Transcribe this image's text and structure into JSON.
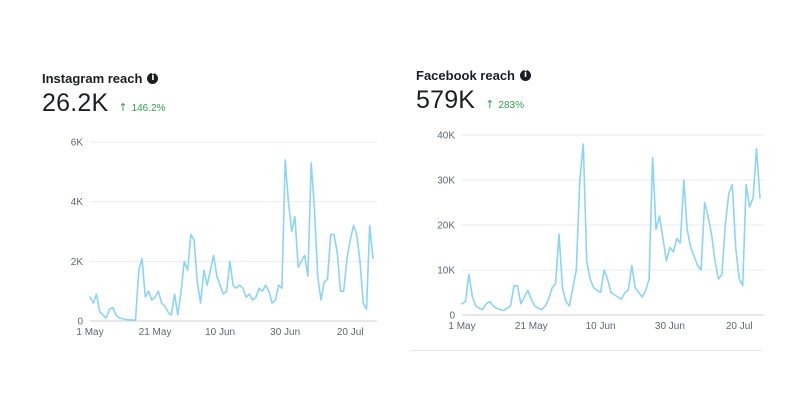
{
  "instagram": {
    "title": "Instagram reach",
    "metric": "26.2K",
    "delta": "146.2%",
    "delta_color": "#31a24c",
    "info_icon": "info-icon",
    "delta_icon": "arrow-up-icon"
  },
  "facebook": {
    "title": "Facebook reach",
    "metric": "579K",
    "delta": "283%",
    "delta_color": "#31a24c",
    "info_icon": "info-icon",
    "delta_icon": "arrow-up-icon"
  },
  "line_color": "#8bd4f7",
  "chart_data": [
    {
      "type": "line",
      "title": "Instagram reach",
      "xlabel": "",
      "ylabel": "",
      "ylim": [
        0,
        6000
      ],
      "yticks": [
        0,
        2000,
        4000,
        6000
      ],
      "ytick_labels": [
        "0",
        "2K",
        "4K",
        "6K"
      ],
      "xticks": [
        0,
        20,
        40,
        60,
        80
      ],
      "xtick_labels": [
        "1 May",
        "21 May",
        "10 Jun",
        "30 Jun",
        "20 Jul"
      ],
      "x_start": "2024-05-01",
      "grid": true,
      "legend": "none",
      "series": [
        {
          "values": [
            800,
            600,
            900,
            300,
            200,
            100,
            400,
            450,
            200,
            100,
            80,
            50,
            40,
            30,
            20,
            1700,
            2100,
            800,
            1000,
            700,
            800,
            1000,
            600,
            500,
            300,
            200,
            900,
            200,
            1000,
            2000,
            1700,
            2900,
            2700,
            1300,
            600,
            1700,
            1200,
            1700,
            2200,
            1500,
            1200,
            900,
            1000,
            2000,
            1200,
            1100,
            1200,
            1100,
            800,
            900,
            700,
            800,
            1100,
            1000,
            1200,
            1000,
            600,
            700,
            1200,
            1100,
            5400,
            4000,
            3000,
            3500,
            1800,
            2000,
            2200,
            1500,
            5300,
            3800,
            1500,
            700,
            1300,
            1400,
            2900,
            2900,
            2300,
            1000,
            1000,
            2100,
            2700,
            3200,
            2900,
            2000,
            600,
            400,
            3200,
            2100
          ]
        }
      ]
    },
    {
      "type": "line",
      "title": "Facebook reach",
      "xlabel": "",
      "ylabel": "",
      "ylim": [
        0,
        40000
      ],
      "yticks": [
        0,
        10000,
        20000,
        30000,
        40000
      ],
      "ytick_labels": [
        "0",
        "10K",
        "20K",
        "30K",
        "40K"
      ],
      "xticks": [
        0,
        20,
        40,
        60,
        80
      ],
      "xtick_labels": [
        "1 May",
        "21 May",
        "10 Jun",
        "30 Jun",
        "20 Jul"
      ],
      "x_start": "2024-05-01",
      "grid": true,
      "legend": "none",
      "series": [
        {
          "values": [
            2500,
            3000,
            9000,
            4000,
            2000,
            1500,
            1200,
            2500,
            3000,
            2000,
            1500,
            1200,
            1000,
            1500,
            2000,
            6500,
            6500,
            2500,
            4000,
            5500,
            3500,
            2000,
            1500,
            1200,
            2000,
            3500,
            6000,
            7000,
            18000,
            6000,
            3000,
            2000,
            6000,
            10000,
            30000,
            38000,
            12000,
            8000,
            6000,
            5500,
            5000,
            10000,
            8000,
            5000,
            4500,
            4000,
            3500,
            5000,
            5500,
            11000,
            6000,
            5000,
            4000,
            5500,
            8000,
            35000,
            19000,
            22000,
            17000,
            12000,
            15000,
            14000,
            17000,
            16000,
            30000,
            19000,
            15000,
            13000,
            11000,
            10000,
            25000,
            22000,
            18000,
            12000,
            8000,
            9000,
            20000,
            27000,
            29000,
            15000,
            8000,
            6500,
            29000,
            24000,
            26000,
            37000,
            26000
          ]
        }
      ]
    }
  ]
}
